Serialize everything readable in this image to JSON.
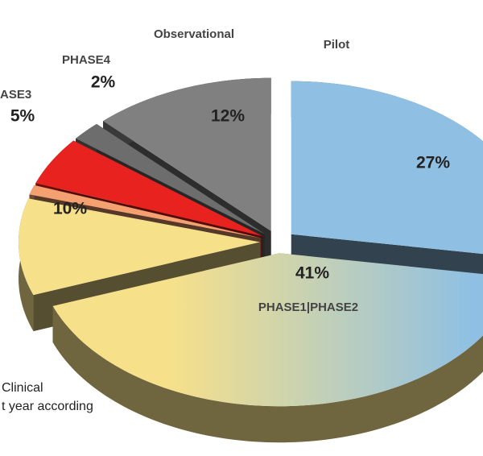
{
  "chart_data": {
    "type": "pie3d",
    "categories": [
      "Pilot",
      "PHASE1|PHASE2",
      null,
      null,
      "ASE3",
      "PHASE4",
      "Observational"
    ],
    "values": [
      27,
      41,
      10,
      1,
      5,
      2,
      12
    ],
    "value_labels": [
      "27%",
      "41%",
      "10%",
      null,
      "5%",
      "2%",
      "12%"
    ],
    "colors": [
      "#8fc0e3",
      [
        "#f7e08a",
        "#8fc0e3"
      ],
      "#f7e08a",
      "#f4a070",
      "#e8231f",
      "#6d6d6d",
      "#808080"
    ],
    "caption_lines": [
      "Clinical",
      "t year according"
    ]
  }
}
